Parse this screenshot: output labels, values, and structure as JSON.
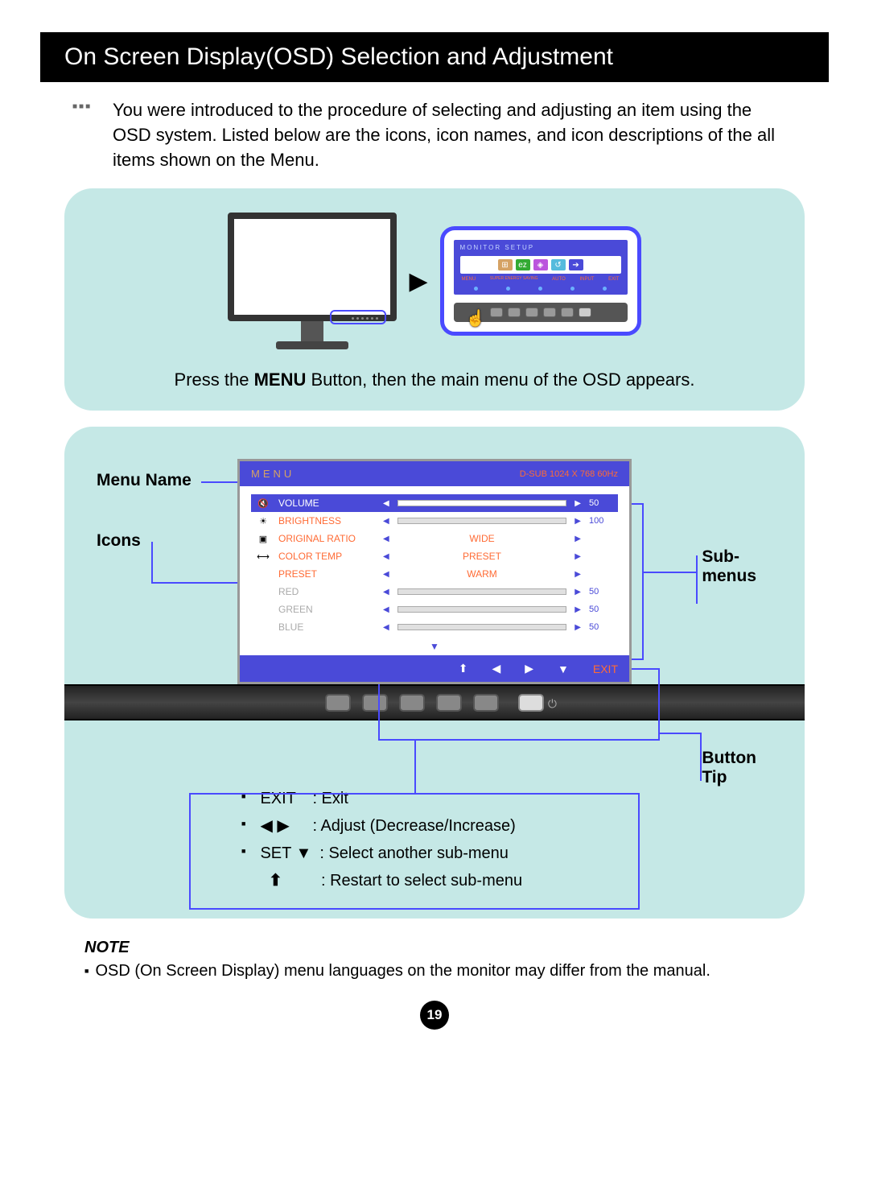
{
  "title": "On Screen Display(OSD) Selection and Adjustment",
  "intro": "You were introduced to the procedure of selecting and adjusting an item using the OSD system. Listed below are the icons, icon names, and icon descriptions of the all items shown on the Menu.",
  "panel1": {
    "osd_mini_title": "MONITOR SETUP",
    "osd_mini_labels": [
      "MENU",
      "SUPER ENERGY SAVING",
      "AUTO",
      "INPUT",
      "EXIT"
    ],
    "caption_pre": "Press the ",
    "caption_bold": "MENU",
    "caption_post": " Button, then the main menu of the OSD appears."
  },
  "labels": {
    "menu_name": "Menu Name",
    "icons": "Icons",
    "sub_menus_1": "Sub-",
    "sub_menus_2": "menus",
    "button_tip_1": "Button",
    "button_tip_2": "Tip"
  },
  "osd": {
    "header_left": "MENU",
    "header_right": "D-SUB 1024 X 768 60Hz",
    "rows": [
      {
        "icon": "🔇",
        "name": "VOLUME",
        "type": "slider",
        "value": 50,
        "fill": 50,
        "selected": true
      },
      {
        "icon": "☀",
        "name": "BRIGHTNESS",
        "type": "slider",
        "value": 100,
        "fill": 100
      },
      {
        "icon": "▣",
        "name": "ORIGINAL RATIO",
        "type": "text",
        "text_value": "WIDE"
      },
      {
        "icon": "⟷",
        "name": "COLOR TEMP",
        "type": "text",
        "text_value": "PRESET"
      },
      {
        "icon": "",
        "name": "PRESET",
        "type": "text",
        "text_value": "WARM"
      },
      {
        "icon": "",
        "name": "RED",
        "type": "slider",
        "value": 50,
        "fill": 50,
        "faded": true
      },
      {
        "icon": "",
        "name": "GREEN",
        "type": "slider",
        "value": 50,
        "fill": 50,
        "faded": true
      },
      {
        "icon": "",
        "name": "BLUE",
        "type": "slider",
        "value": 50,
        "fill": 50,
        "faded": true
      }
    ],
    "footer": {
      "up": "⬆",
      "left": "◀",
      "right": "▶",
      "down": "▼",
      "exit": "EXIT"
    }
  },
  "tips": {
    "r1_label": "EXIT",
    "r1_desc": ":  Exit",
    "r2_label": "◀ ▶",
    "r2_desc": ":  Adjust (Decrease/Increase)",
    "r3_label": "SET ▼",
    "r3_desc": ":  Select another sub-menu",
    "r4_label": "⬆",
    "r4_desc": ":  Restart to select sub-menu"
  },
  "note": {
    "heading": "NOTE",
    "body": "OSD (On Screen Display) menu languages on the monitor may differ from the manual."
  },
  "page_number": "19",
  "colors": {
    "panel_bg": "#c5e8e6",
    "osd_blue": "#4a4ad8",
    "accent_orange": "#ff6b35",
    "connector_blue": "#4a4aff"
  }
}
